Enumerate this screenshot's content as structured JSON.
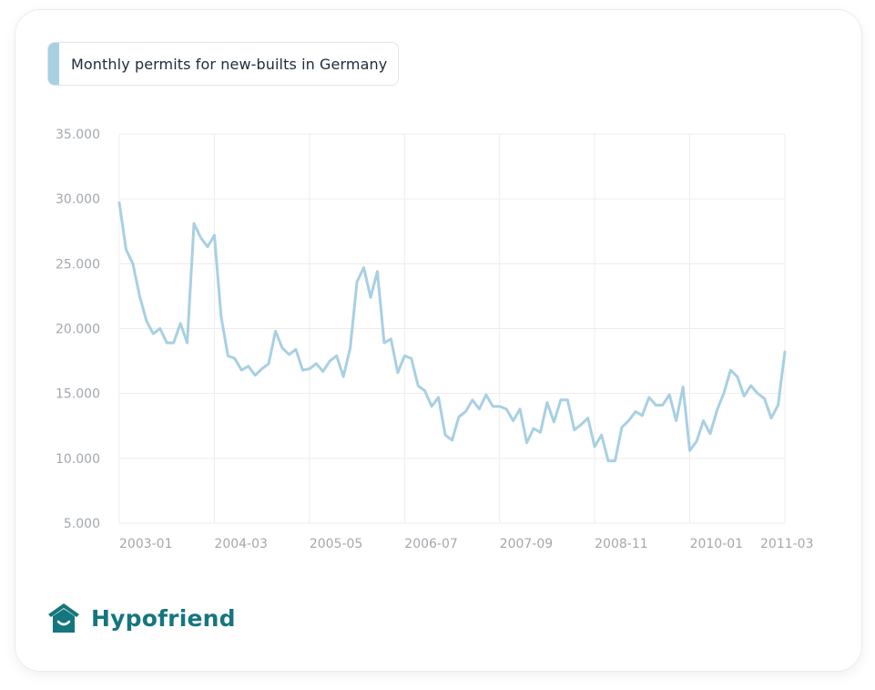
{
  "header": {
    "title": "Monthly permits for new-builts in Germany"
  },
  "brand": {
    "name": "Hypofriend",
    "icon": "house-smile-icon",
    "color": "#15767e"
  },
  "colors": {
    "line": "#a8d0e2",
    "grid": "#ececec",
    "tick_text": "#a3a8ae"
  },
  "chart_data": {
    "type": "line",
    "title": "Monthly permits for new-builts in Germany",
    "xlabel": "",
    "ylabel": "",
    "x_start": "2003-01",
    "x_end": "2011-03",
    "x_ticks": [
      "2003-01",
      "2004-03",
      "2005-05",
      "2006-07",
      "2007-09",
      "2008-11",
      "2010-01",
      "2011-03"
    ],
    "y_ticks": [
      "5.000",
      "10.000",
      "15.000",
      "20.000",
      "25.000",
      "30.000",
      "35.000"
    ],
    "ylim": [
      5000,
      35000
    ],
    "grid": true,
    "legend": "none",
    "series": [
      {
        "values": [
          29700,
          26100,
          25000,
          22500,
          20600,
          19600,
          20000,
          18900,
          18900,
          20400,
          18900,
          28100,
          27000,
          26300,
          27200,
          20900,
          17900,
          17700,
          16800,
          17100,
          16400,
          16900,
          17300,
          19800,
          18500,
          18000,
          18400,
          16800,
          16900,
          17300,
          16700,
          17500,
          17900,
          16300,
          18500,
          23600,
          24700,
          22400,
          24400,
          18900,
          19200,
          16600,
          17900,
          17700,
          15600,
          15200,
          14000,
          14700,
          11800,
          11400,
          13200,
          13600,
          14500,
          13800,
          14900,
          14000,
          14000,
          13800,
          12900,
          13800,
          11200,
          12300,
          12000,
          14300,
          12800,
          14500,
          14500,
          12200,
          12600,
          13100,
          10900,
          11800,
          9800,
          9800,
          12400,
          12900,
          13600,
          13300,
          14700,
          14100,
          14100,
          14900,
          12900,
          15500,
          10600,
          11300,
          12900,
          11900,
          13700,
          15000,
          16800,
          16300,
          14800,
          15600,
          15000,
          14600,
          13100,
          14100,
          18200
        ]
      }
    ]
  }
}
